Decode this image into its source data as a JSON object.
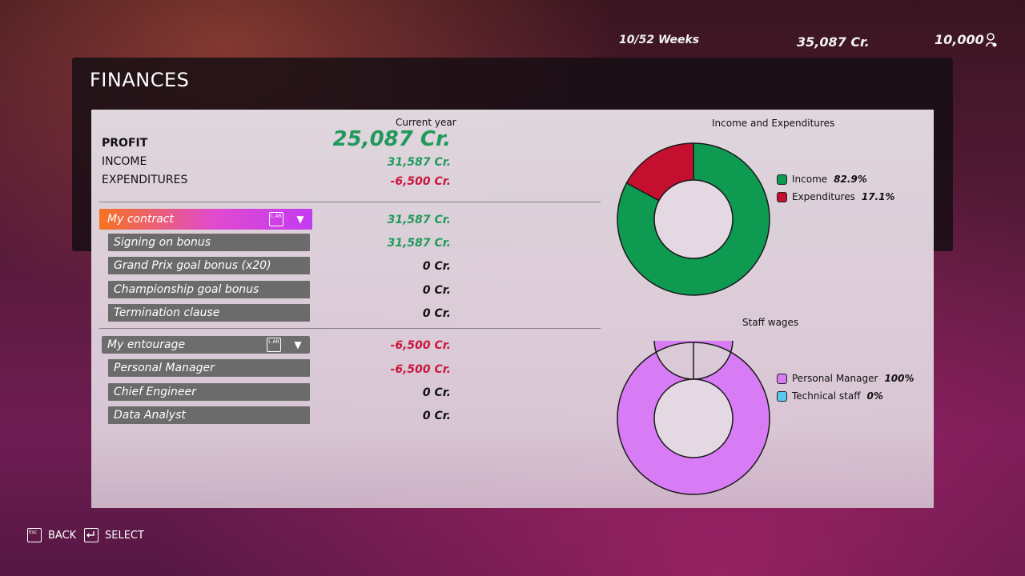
{
  "hud": {
    "weeks": "10/52 Weeks",
    "credits": "35,087 Cr.",
    "fans": "10,000",
    "fans_icon": "person-icon"
  },
  "page": {
    "title": "FINANCES"
  },
  "summary": {
    "column_header": "Current year",
    "profit_label": "PROFIT",
    "profit_value": "25,087 Cr.",
    "income_label": "INCOME",
    "income_value": "31,587 Cr.",
    "expenditures_label": "EXPENDITURES",
    "expenditures_value": "-6,500 Cr."
  },
  "contract": {
    "label": "My contract",
    "lr_icon_text": "L AR",
    "value": "31,587 Cr.",
    "items": [
      {
        "label": "Signing on bonus",
        "value": "31,587 Cr."
      },
      {
        "label": "Grand Prix goal bonus (x20)",
        "value": "0 Cr."
      },
      {
        "label": "Championship goal bonus",
        "value": "0 Cr."
      },
      {
        "label": "Termination clause",
        "value": "0 Cr."
      }
    ]
  },
  "entourage": {
    "label": "My entourage",
    "lr_icon_text": "L AR",
    "value": "-6,500 Cr.",
    "items": [
      {
        "label": "Personal Manager",
        "value": "-6,500 Cr."
      },
      {
        "label": "Chief Engineer",
        "value": "0 Cr."
      },
      {
        "label": "Data Analyst",
        "value": "0 Cr."
      }
    ]
  },
  "chart_data": [
    {
      "type": "pie",
      "title": "Income and Expenditures",
      "categories": [
        "Income",
        "Expenditures"
      ],
      "values": [
        82.9,
        17.1
      ],
      "labels": [
        "82.9%",
        "17.1%"
      ],
      "colors": [
        "#0f9a52",
        "#c4102e"
      ],
      "legend": "right"
    },
    {
      "type": "pie",
      "title": "Staff wages",
      "categories": [
        "Personal Manager",
        "Technical staff"
      ],
      "values": [
        100,
        0
      ],
      "labels": [
        "100%",
        "0%"
      ],
      "colors": [
        "#d77cf5",
        "#5cc8ee"
      ],
      "legend": "right"
    }
  ],
  "footer": {
    "back_key": "Esc",
    "back_label": "BACK",
    "select_label": "SELECT"
  }
}
